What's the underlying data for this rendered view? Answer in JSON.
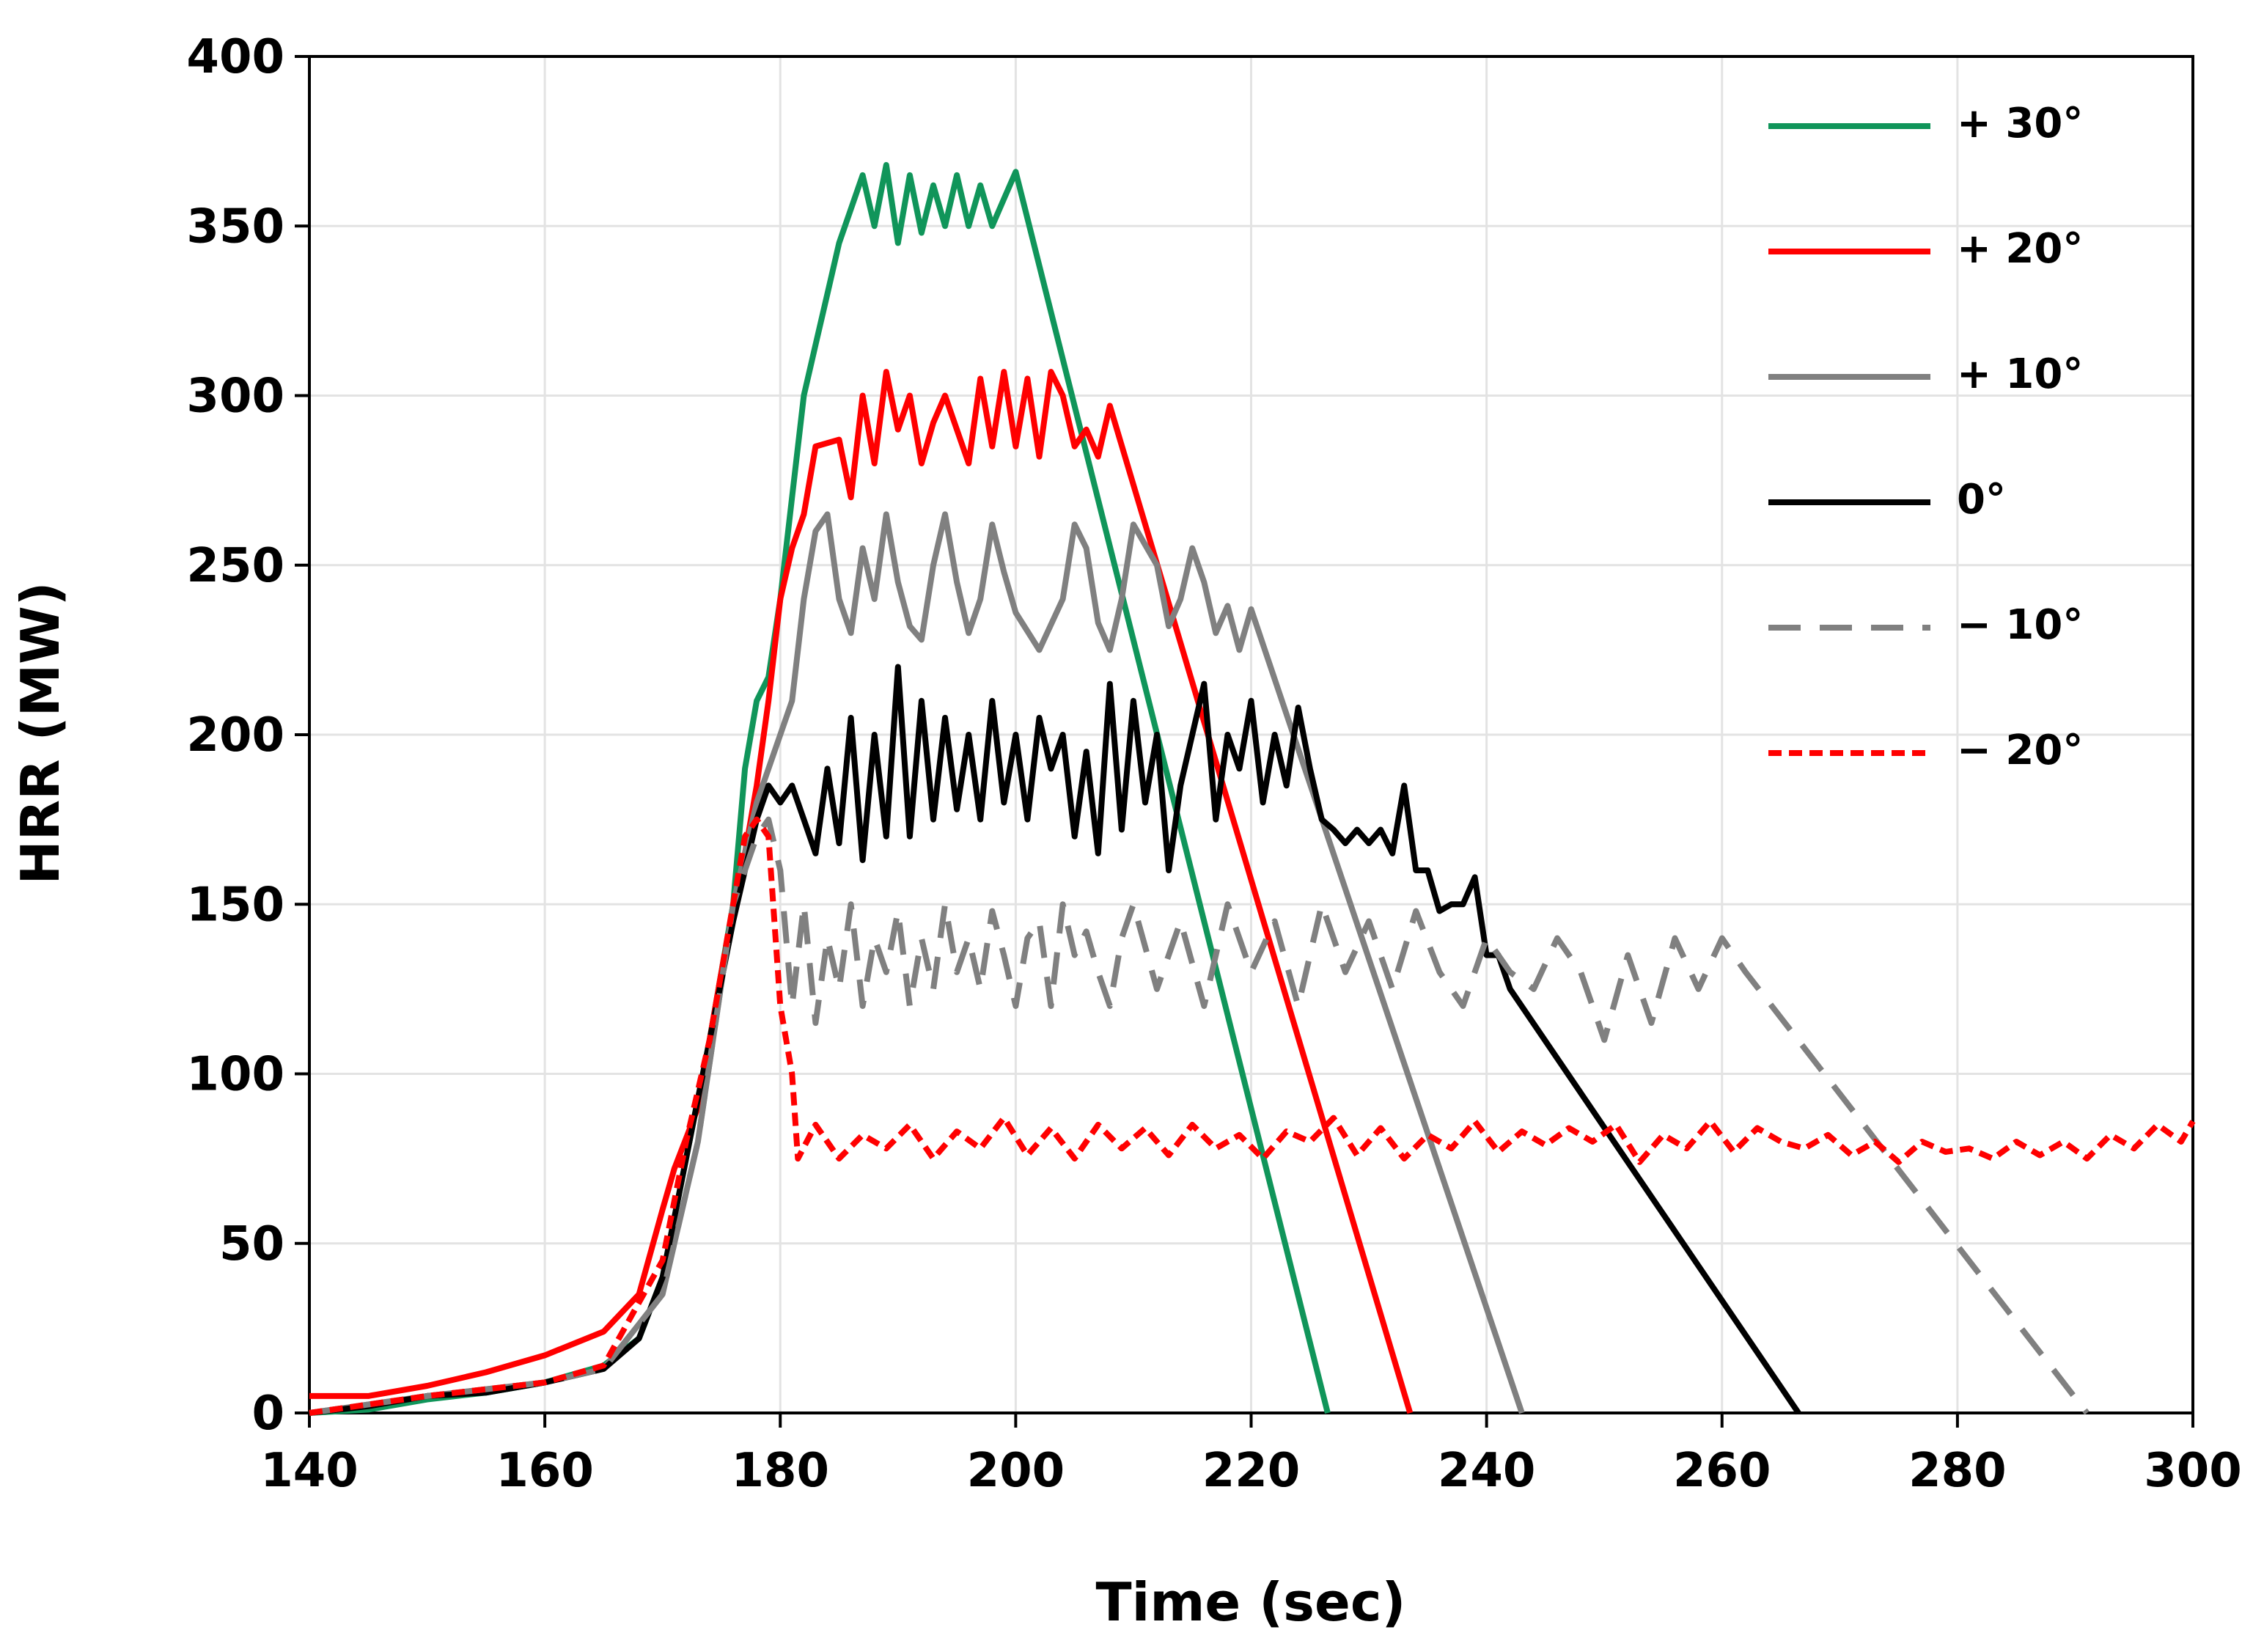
{
  "chart_data": {
    "type": "line",
    "x_label": "Time (sec)",
    "y_label": "HRR (MW)",
    "xlim": [
      140,
      300
    ],
    "xticks": [
      140,
      160,
      180,
      200,
      220,
      240,
      260,
      280,
      300
    ],
    "ylim": [
      0,
      400
    ],
    "yticks": [
      0,
      50,
      100,
      150,
      200,
      250,
      300,
      350,
      400
    ],
    "grid": true,
    "legend": "upper right",
    "series": [
      {
        "name": "+ 30°",
        "color": "#10955a",
        "linestyle": "solid",
        "x": [
          140,
          145,
          150,
          155,
          160,
          165,
          168,
          170,
          172,
          174,
          176,
          177,
          178,
          179,
          180,
          181,
          182,
          183,
          184,
          185,
          186,
          187,
          188,
          189,
          190,
          191,
          192,
          193,
          194,
          195,
          196,
          197,
          198,
          199,
          200,
          226.5
        ],
        "values": [
          0,
          1,
          4,
          6,
          9,
          14,
          22,
          40,
          75,
          110,
          150,
          190,
          210,
          217,
          240,
          270,
          300,
          315,
          330,
          345,
          355,
          365,
          350,
          368,
          345,
          365,
          348,
          362,
          350,
          365,
          350,
          362,
          350,
          358,
          366,
          0
        ]
      },
      {
        "name": "+ 20°",
        "color": "#ff0000",
        "linestyle": "solid",
        "x": [
          140,
          145,
          150,
          155,
          160,
          165,
          168,
          170,
          171,
          173,
          175,
          177,
          178,
          179,
          180,
          181,
          182,
          183,
          185,
          186,
          187,
          188,
          189,
          190,
          191,
          192,
          193,
          194,
          195,
          196,
          197,
          198,
          199,
          200,
          201,
          202,
          203,
          204,
          205,
          206,
          207,
          208,
          233.5
        ],
        "values": [
          5,
          5,
          8,
          12,
          17,
          24,
          35,
          60,
          72,
          90,
          130,
          165,
          185,
          210,
          240,
          255,
          265,
          285,
          287,
          270,
          300,
          280,
          307,
          290,
          300,
          280,
          292,
          300,
          290,
          280,
          305,
          285,
          307,
          285,
          305,
          282,
          307,
          300,
          285,
          290,
          282,
          297,
          0
        ]
      },
      {
        "name": "+ 10°",
        "color": "#808080",
        "linestyle": "solid",
        "x": [
          140,
          150,
          160,
          165,
          170,
          173,
          176,
          178,
          179,
          181,
          182,
          183,
          184,
          185,
          186,
          187,
          188,
          189,
          190,
          191,
          192,
          193,
          194,
          195,
          196,
          197,
          198,
          199,
          200,
          202,
          204,
          205,
          206,
          207,
          208,
          209,
          210,
          212,
          213,
          214,
          215,
          216,
          217,
          218,
          219,
          220,
          243
        ],
        "values": [
          0,
          5,
          9,
          13,
          35,
          80,
          150,
          180,
          190,
          210,
          240,
          260,
          265,
          240,
          230,
          255,
          240,
          265,
          245,
          232,
          228,
          250,
          265,
          245,
          230,
          240,
          262,
          248,
          236,
          225,
          240,
          262,
          255,
          233,
          225,
          240,
          262,
          250,
          232,
          240,
          255,
          245,
          230,
          238,
          225,
          237,
          0
        ]
      },
      {
        "name": "0°",
        "color": "#000000",
        "linestyle": "solid",
        "x": [
          140,
          145,
          150,
          155,
          160,
          165,
          168,
          170,
          172,
          174,
          176,
          178,
          179,
          180,
          181,
          182,
          183,
          184,
          185,
          186,
          187,
          188,
          189,
          190,
          191,
          192,
          193,
          194,
          195,
          196,
          197,
          198,
          199,
          200,
          201,
          202,
          203,
          204,
          205,
          206,
          207,
          208,
          209,
          210,
          211,
          212,
          213,
          214,
          215,
          216,
          217,
          218,
          219,
          220,
          221,
          222,
          223,
          224,
          225,
          226,
          227,
          228,
          229,
          230,
          231,
          232,
          233,
          234,
          235,
          236,
          237,
          238,
          239,
          240,
          241,
          242,
          266.5
        ],
        "values": [
          0,
          2,
          5,
          6,
          9,
          13,
          22,
          40,
          75,
          110,
          145,
          175,
          185,
          180,
          185,
          175,
          165,
          190,
          168,
          205,
          163,
          200,
          170,
          220,
          170,
          210,
          175,
          205,
          178,
          200,
          175,
          210,
          180,
          200,
          175,
          205,
          190,
          200,
          170,
          195,
          165,
          215,
          172,
          210,
          180,
          200,
          160,
          185,
          200,
          215,
          175,
          200,
          190,
          210,
          180,
          200,
          185,
          208,
          190,
          175,
          172,
          168,
          172,
          168,
          172,
          165,
          185,
          160,
          160,
          148,
          150,
          150,
          158,
          135,
          135,
          125,
          0
        ]
      },
      {
        "name": "− 10°",
        "color": "#808080",
        "linestyle": "dashed",
        "x": [
          140,
          150,
          160,
          165,
          170,
          173,
          176,
          178,
          179,
          180,
          181,
          182,
          183,
          184,
          185,
          186,
          187,
          188,
          189,
          190,
          191,
          192,
          193,
          194,
          195,
          196,
          197,
          198,
          199,
          200,
          201,
          202,
          203,
          204,
          205,
          206,
          207,
          208,
          209,
          210,
          212,
          214,
          216,
          218,
          220,
          222,
          224,
          226,
          228,
          230,
          232,
          234,
          236,
          238,
          240,
          242,
          244,
          246,
          248,
          250,
          252,
          254,
          256,
          258,
          260,
          262,
          291
        ],
        "values": [
          0,
          5,
          9,
          13,
          35,
          80,
          150,
          170,
          175,
          160,
          120,
          150,
          115,
          140,
          125,
          150,
          120,
          140,
          130,
          148,
          120,
          140,
          125,
          150,
          130,
          140,
          125,
          148,
          135,
          120,
          140,
          145,
          120,
          150,
          135,
          142,
          130,
          120,
          140,
          150,
          125,
          145,
          120,
          150,
          130,
          145,
          120,
          150,
          130,
          145,
          125,
          148,
          130,
          120,
          140,
          130,
          125,
          140,
          130,
          110,
          135,
          115,
          140,
          125,
          140,
          130,
          0
        ]
      },
      {
        "name": "− 20°",
        "color": "#ff0000",
        "linestyle": "dotted",
        "x": [
          140,
          150,
          160,
          165,
          170,
          172,
          174,
          176,
          177,
          178,
          179,
          180,
          181,
          181.5,
          183,
          185,
          187,
          189,
          191,
          193,
          195,
          197,
          199,
          201,
          203,
          205,
          207,
          209,
          211,
          213,
          215,
          217,
          219,
          221,
          223,
          225,
          227,
          229,
          231,
          233,
          235,
          237,
          239,
          241,
          243,
          245,
          247,
          249,
          251,
          253,
          255,
          257,
          259,
          261,
          263,
          265,
          267,
          269,
          271,
          273,
          275,
          277,
          279,
          281,
          283,
          285,
          287,
          289,
          291,
          293,
          295,
          297,
          299,
          300
        ],
        "values": [
          0,
          5,
          9,
          14,
          45,
          80,
          110,
          150,
          170,
          175,
          170,
          120,
          100,
          75,
          85,
          75,
          82,
          78,
          85,
          75,
          83,
          78,
          87,
          76,
          84,
          75,
          85,
          78,
          84,
          76,
          85,
          78,
          82,
          75,
          83,
          80,
          87,
          76,
          84,
          75,
          82,
          78,
          86,
          77,
          83,
          79,
          84,
          80,
          85,
          74,
          82,
          78,
          86,
          77,
          84,
          80,
          78,
          82,
          76,
          80,
          74,
          80,
          77,
          78,
          75,
          80,
          76,
          80,
          75,
          82,
          78,
          85,
          80,
          86
        ]
      }
    ]
  }
}
